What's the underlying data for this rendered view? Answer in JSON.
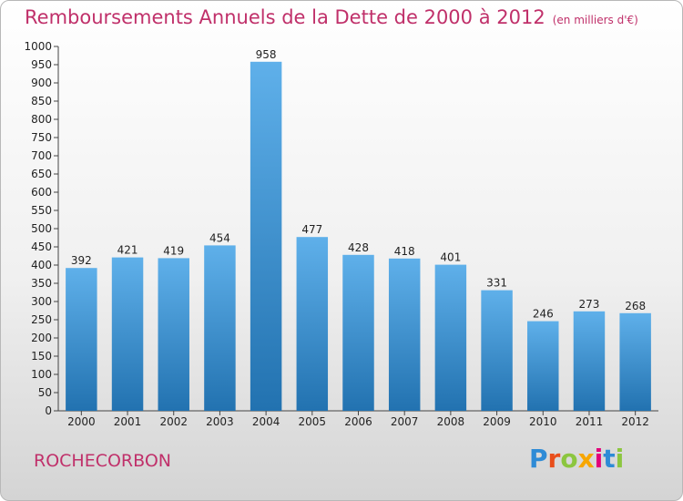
{
  "header": {
    "title": "Remboursements Annuels de la Dette de 2000 à 2012",
    "unit": "(en milliers d'€)"
  },
  "footer": {
    "commune": "ROCHECORBON",
    "brand": "Proxiti",
    "brand_colors": [
      "#2e8bd6",
      "#e94e1b",
      "#8cc63f",
      "#f7a600",
      "#e2007a",
      "#2e8bd6",
      "#8cc63f"
    ]
  },
  "colors": {
    "bar_top": "#5fb0ea",
    "bar_bottom": "#2272b0",
    "title": "#c0306a"
  },
  "chart_data": {
    "type": "bar",
    "categories": [
      "2000",
      "2001",
      "2002",
      "2003",
      "2004",
      "2005",
      "2006",
      "2007",
      "2008",
      "2009",
      "2010",
      "2011",
      "2012"
    ],
    "values": [
      392,
      421,
      419,
      454,
      958,
      477,
      428,
      418,
      401,
      331,
      246,
      273,
      268
    ],
    "ylim": [
      0,
      1000
    ],
    "ytick_step": 50,
    "grid": false,
    "legend": "none"
  }
}
